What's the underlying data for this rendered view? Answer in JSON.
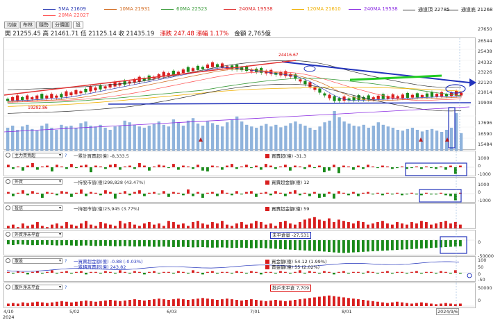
{
  "legend": {
    "ma5": {
      "label": "5MA 21609",
      "color": "#2f3fb5"
    },
    "ma10": {
      "label": "10MA 21931",
      "color": "#d2691e"
    },
    "ma60": {
      "label": "60MA 22523",
      "color": "#3a9b3a"
    },
    "ma240_a": {
      "label": "240MA 19538",
      "color": "#e03030"
    },
    "ma120": {
      "label": "120MA 21610",
      "color": "#f0b000"
    },
    "ma240_b": {
      "label": "240MA 19538",
      "color": "#8a2be2"
    },
    "ch_top": {
      "label": "通道頂 22785",
      "color": "#333333"
    },
    "ch_bot": {
      "label": "通道底 21268",
      "color": "#333333"
    },
    "ma20": {
      "label": "20MA 22027",
      "color": "#ff5050"
    }
  },
  "tabs": [
    "均線",
    "布林",
    "隨勢",
    "分價圖",
    "設"
  ],
  "quote": {
    "open_label": "開",
    "open": "21255.45",
    "high_label": "高",
    "high": "21461.71",
    "low_label": "低",
    "low": "21125.14",
    "close_label": "收",
    "close": "21435.19",
    "change_label": "漲跌",
    "change": "247.48",
    "pct_label": "漲幅",
    "pct": "1.17%",
    "amount_label": "金額",
    "amount": "2,765億"
  },
  "main_chart": {
    "y_ticks": [
      "27650",
      "26544",
      "25438",
      "24332",
      "23226",
      "22120",
      "21014",
      "19908",
      "17696",
      "16590",
      "15484"
    ],
    "high_label": "24416.67",
    "low_label": "19292.86",
    "candles": [
      -1,
      1,
      1,
      -1,
      1,
      1,
      1,
      -1,
      1,
      1,
      1,
      -1,
      1,
      1,
      1,
      1,
      -1,
      1,
      1,
      -1,
      1,
      1,
      1,
      1,
      -1,
      1,
      1,
      1,
      -1,
      -1,
      1,
      1,
      1,
      1,
      -1,
      1,
      1,
      -1,
      1,
      -1,
      -1,
      1,
      1,
      -1,
      1,
      1,
      -1,
      -1,
      -1,
      -1,
      1,
      -1,
      -1,
      1,
      1,
      -1,
      1,
      1,
      1,
      -1,
      1,
      -1,
      1,
      1,
      -1,
      -1,
      1,
      -1,
      -1,
      1,
      -1,
      -1,
      -1,
      -1,
      -1,
      1,
      1,
      -1,
      1,
      1,
      1,
      1,
      -1,
      1,
      -1,
      1,
      -1,
      -1,
      1,
      1,
      -1,
      1,
      1,
      1
    ],
    "volumes": [
      0.55,
      0.6,
      0.5,
      0.58,
      0.62,
      0.52,
      0.48,
      0.6,
      0.65,
      0.55,
      0.5,
      0.62,
      0.58,
      0.6,
      0.55,
      0.66,
      0.7,
      0.6,
      0.58,
      0.62,
      0.55,
      0.5,
      0.58,
      0.6,
      0.72,
      0.68,
      0.62,
      0.58,
      0.55,
      0.6,
      0.65,
      0.7,
      0.62,
      0.58,
      0.75,
      0.68,
      0.6,
      0.72,
      0.78,
      0.65,
      0.6,
      0.7,
      0.66,
      0.62,
      0.58,
      0.68,
      0.75,
      0.82,
      0.7,
      0.62,
      0.58,
      0.55,
      0.6,
      0.64,
      0.58,
      0.62,
      0.56,
      0.6,
      0.66,
      0.7,
      0.64,
      0.6,
      0.55,
      0.5,
      0.58,
      0.68,
      0.72,
      0.95,
      0.8,
      0.7,
      0.65,
      0.6,
      0.58,
      0.62,
      0.55,
      0.6,
      0.68,
      0.62,
      0.58,
      0.55,
      0.5,
      0.48,
      0.52,
      0.55,
      0.5,
      0.46,
      0.5,
      0.52,
      0.48,
      0.45,
      0.5,
      0.55,
      0.9,
      0.42
    ]
  },
  "panels": [
    {
      "key": "main_force",
      "select": "主力買賣超",
      "q": "?",
      "y_ticks": [
        "1000",
        "0",
        "-1000"
      ],
      "info": [
        {
          "text": "一累計買賣超(億) -8,333.5",
          "color": "#333"
        },
        {
          "text": "買賣超(億) -31.3",
          "color": "#d00"
        }
      ],
      "bars": [
        0.3,
        -0.2,
        0.1,
        -0.4,
        0.2,
        0.5,
        -0.3,
        0.1,
        0.2,
        -0.5,
        0.3,
        0.1,
        -0.2,
        0.4,
        -0.1,
        0.2,
        0.3,
        -0.6,
        0.2,
        0.1,
        -0.2,
        0.3,
        0.4,
        -0.3,
        0.1,
        0.2,
        -0.2,
        0.5,
        0.2,
        -0.4,
        0.1,
        0.3,
        0.2,
        -0.1,
        0.4,
        -0.3,
        0.2,
        0.1,
        -0.2,
        0.3,
        -0.4,
        -0.5,
        0.2,
        0.1,
        -0.3,
        0.2,
        0.4,
        -0.2,
        0.1,
        0.3,
        -0.1,
        0.2,
        -0.3,
        0.4,
        0.2,
        -0.2,
        0.1,
        0.3,
        -0.4,
        0.2,
        0.1,
        -0.2,
        0.3,
        -0.1,
        0.2,
        -0.6,
        -0.4,
        0.3,
        -0.7,
        0.2,
        0.1,
        -0.3,
        0.2,
        -0.2,
        0.3,
        0.1,
        -0.1,
        0.2,
        0.1,
        -0.2,
        -0.1,
        0.1,
        -0.2,
        -0.1,
        0.1,
        -0.2,
        0.1,
        -0.1,
        -0.2,
        0.1,
        -0.3,
        0.2,
        -0.8,
        0.2
      ]
    },
    {
      "key": "foreign",
      "select": "外資",
      "q": "",
      "y_ticks": [
        "1000",
        "0",
        "-1000"
      ],
      "info": [
        {
          "text": "一持股市值(億)298,828 (43.47%)",
          "color": "#333"
        },
        {
          "text": "買賣超金額(億) 12",
          "color": "#d00"
        }
      ],
      "bars": [
        0.2,
        -0.3,
        0.1,
        0.4,
        -0.2,
        0.3,
        0.1,
        -0.5,
        0.2,
        0.1,
        -0.2,
        0.3,
        0.2,
        -0.4,
        0.1,
        0.5,
        -0.3,
        0.2,
        0.1,
        -0.2,
        0.4,
        0.2,
        -0.6,
        0.1,
        0.3,
        -0.2,
        0.2,
        0.4,
        -0.3,
        0.1,
        0.2,
        -0.1,
        0.3,
        -0.4,
        0.2,
        0.1,
        -0.2,
        0.5,
        -0.3,
        0.2,
        -0.5,
        0.1,
        0.2,
        -0.3,
        0.4,
        0.1,
        -0.2,
        0.3,
        -0.1,
        0.2,
        0.3,
        -0.4,
        0.1,
        0.2,
        -0.2,
        0.3,
        0.1,
        -0.3,
        0.2,
        0.4,
        -0.2,
        0.1,
        -0.3,
        0.2,
        -0.5,
        -0.4,
        0.2,
        -0.6,
        0.3,
        0.1,
        -0.2,
        0.2,
        -0.3,
        0.1,
        0.2,
        -0.1,
        0.1,
        -0.2,
        0.1,
        -0.1,
        0.1,
        -0.2,
        -0.1,
        0.1,
        -0.1,
        -0.2,
        0.1,
        -0.1,
        -0.1,
        0.1,
        -0.2,
        -0.3,
        -0.8,
        0.1
      ]
    },
    {
      "key": "trust",
      "select": "投信",
      "q": "",
      "y_ticks": [],
      "info": [
        {
          "text": "一持股市值(億)25,945 (3.77%)",
          "color": "#333"
        },
        {
          "text": "買賣超金額(億) 59",
          "color": "#d00"
        }
      ],
      "bars": [
        0.2,
        0.3,
        0.1,
        0.4,
        0.2,
        0.3,
        0.5,
        0.2,
        0.1,
        0.3,
        0.4,
        0.2,
        0.5,
        0.3,
        0.2,
        0.4,
        0.6,
        0.3,
        0.2,
        0.5,
        0.4,
        0.3,
        0.2,
        0.6,
        0.4,
        0.5,
        0.3,
        0.2,
        0.4,
        0.5,
        0.3,
        0.4,
        0.2,
        0.6,
        0.5,
        0.3,
        0.4,
        0.2,
        0.5,
        0.6,
        0.4,
        0.3,
        0.5,
        0.4,
        0.6,
        0.3,
        0.2,
        0.4,
        0.5,
        0.3,
        0.4,
        0.6,
        0.5,
        0.3,
        0.4,
        0.2,
        0.5,
        0.6,
        0.4,
        0.3,
        0.5,
        0.7,
        0.8,
        0.9,
        0.7,
        0.6,
        0.8,
        0.5,
        0.7,
        0.6,
        0.5,
        0.4,
        0.6,
        0.5,
        0.3,
        0.4,
        0.5,
        0.6,
        0.4,
        0.3,
        0.5,
        0.4,
        0.3,
        0.5,
        0.4,
        0.6,
        0.5,
        0.3,
        0.4,
        0.5,
        0.6,
        0.4,
        0.5,
        0.3
      ]
    },
    {
      "key": "foreign_open",
      "select": "外資淨未平倉",
      "q": "",
      "y_ticks": [
        "0",
        "-50000"
      ],
      "info": [
        {
          "text": "未平倉量 -27,531",
          "color": "#333",
          "box": "#2233bb"
        }
      ],
      "bars": [
        -0.3,
        -0.35,
        -0.3,
        -0.32,
        -0.34,
        -0.36,
        -0.35,
        -0.33,
        -0.34,
        -0.36,
        -0.38,
        -0.37,
        -0.36,
        -0.38,
        -0.4,
        -0.39,
        -0.38,
        -0.4,
        -0.42,
        -0.41,
        -0.4,
        -0.42,
        -0.44,
        -0.43,
        -0.42,
        -0.44,
        -0.46,
        -0.45,
        -0.44,
        -0.46,
        -0.48,
        -0.47,
        -0.46,
        -0.48,
        -0.5,
        -0.49,
        -0.48,
        -0.5,
        -0.52,
        -0.51,
        -0.5,
        -0.52,
        -0.54,
        -0.53,
        -0.52,
        -0.54,
        -0.56,
        -0.55,
        -0.54,
        -0.56,
        -0.58,
        -0.57,
        -0.56,
        -0.58,
        -0.6,
        -0.62,
        -0.64,
        -0.66,
        -0.68,
        -0.7,
        -0.72,
        -0.74,
        -0.76,
        -0.78,
        -0.8,
        -0.82,
        -0.85,
        -0.88,
        -0.9,
        -0.92,
        -0.9,
        -0.88,
        -0.86,
        -0.84,
        -0.82,
        -0.8,
        -0.78,
        -0.76,
        -0.74,
        -0.72,
        -0.7,
        -0.68,
        -0.66,
        -0.64,
        -0.62,
        -0.6,
        -0.58,
        -0.56,
        -0.54,
        -0.52,
        -0.5,
        -0.48,
        -0.46,
        -0.44
      ]
    },
    {
      "key": "margin",
      "select": "散股",
      "q": "?",
      "y_ticks": [
        "100",
        "50",
        "0",
        "-50"
      ],
      "info": [
        {
          "text": "一買賣超金額(億) -0.88 (-0.03%)",
          "color": "#2233bb"
        },
        {
          "text": "一累積買賣超(億) 243.82",
          "color": "#2233bb"
        },
        {
          "text": "買金額(億) 54.12 (1.99%)",
          "color": "#d00"
        },
        {
          "text": "賣金額(億) 55 (2.02%)",
          "color": "#d00"
        }
      ],
      "bars": [
        0.1,
        -0.1,
        0.2,
        0.1,
        -0.2,
        0.1,
        0.2,
        -0.1,
        0.1,
        0.3,
        -0.1,
        0.1,
        0.2,
        -0.1,
        0.1,
        0.2,
        -0.2,
        0.1,
        0.1,
        -0.1,
        0.2,
        0.1,
        -0.1,
        0.3,
        0.1,
        -0.1,
        0.2,
        0.1,
        -0.2,
        0.1,
        0.2,
        -0.1,
        0.1,
        0.1,
        -0.1,
        0.2,
        0.1,
        -0.1,
        0.3,
        0.1,
        -0.2,
        0.1,
        0.2,
        -0.1,
        0.1,
        0.1,
        -0.1,
        0.2,
        0.1,
        -0.1,
        0.2,
        0.1,
        -0.2,
        0.1,
        0.1,
        -0.1,
        0.2,
        0.1,
        -0.1,
        0.1,
        0.3,
        -0.1,
        0.2,
        0.1,
        -0.1,
        0.2,
        0.1,
        -0.2,
        0.1,
        0.2,
        -0.1,
        0.1,
        0.1,
        -0.1,
        0.2,
        0.1,
        -0.1,
        0.1,
        0.2,
        -0.1,
        0.1,
        0.1,
        -0.1,
        0.1,
        0.2,
        -0.1,
        0.1,
        0.1,
        -0.1,
        0.2,
        0.1,
        -0.1,
        0.3,
        -0.1
      ]
    },
    {
      "key": "retail_open",
      "select": "散戶淨未平倉",
      "q": "?",
      "y_ticks": [
        "50000",
        "0"
      ],
      "info": [
        {
          "text": "散戶未平倉 7,709",
          "color": "#333",
          "box": "#d00"
        }
      ],
      "bars": [
        0.2,
        0.25,
        0.2,
        0.3,
        0.25,
        0.3,
        0.35,
        0.3,
        0.25,
        0.3,
        0.35,
        0.4,
        0.35,
        0.3,
        0.35,
        0.4,
        0.45,
        0.4,
        0.35,
        0.4,
        0.45,
        0.5,
        0.45,
        0.4,
        0.45,
        0.5,
        0.55,
        0.5,
        0.45,
        0.5,
        0.55,
        0.6,
        0.55,
        0.5,
        0.55,
        0.6,
        0.55,
        0.5,
        0.55,
        0.6,
        0.65,
        0.6,
        0.55,
        0.5,
        0.55,
        0.6,
        0.55,
        0.5,
        0.45,
        0.5,
        0.55,
        0.5,
        0.45,
        0.4,
        0.45,
        0.5,
        0.45,
        0.4,
        0.45,
        0.5,
        0.55,
        0.6,
        0.65,
        0.7,
        0.75,
        0.8,
        0.85,
        0.8,
        0.75,
        0.7,
        0.65,
        0.6,
        0.55,
        0.5,
        0.45,
        0.4,
        0.35,
        0.3,
        0.25,
        0.3,
        0.35,
        0.3,
        0.25,
        0.2,
        0.25,
        0.3,
        0.25,
        0.2,
        0.15,
        0.2,
        0.25,
        0.2,
        0.15,
        0.2
      ]
    }
  ],
  "x_axis": [
    "4/10",
    "5/02",
    "6/03",
    "7/01",
    "8/01",
    "2024/9/6"
  ],
  "x_year": "2024",
  "colors": {
    "up": "#d81e1e",
    "down": "#1a8a1a",
    "vol": "#8fb3dc",
    "blue_annot": "#2233bb",
    "green_annot": "#22cc22"
  }
}
